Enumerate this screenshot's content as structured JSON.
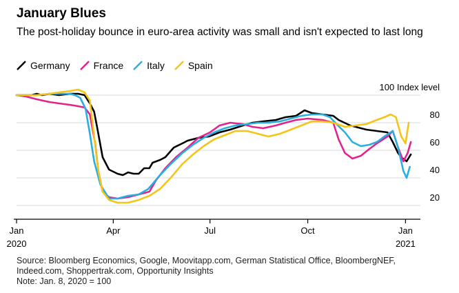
{
  "title": "January Blues",
  "subtitle": "The post-holiday bounce in euro-area activity was small and isn't expected to last long",
  "footer": {
    "source_line1": "Source: Bloomberg Economics, Google, Moovitapp.com, German Statistical Office, BloombergNEF,",
    "source_line2": "Indeed.com, Shoppertrak.com, Opportunity Insights",
    "note": "Note: Jan. 8, 2020 = 100"
  },
  "colors": {
    "Germany": "#000000",
    "France": "#e3238b",
    "Italy": "#29aee0",
    "Spain": "#f4c518",
    "grid": "#d9d9d9",
    "axis": "#000000"
  },
  "chart_data": {
    "type": "line",
    "title": "January Blues",
    "subtitle": "The post-holiday bounce in euro-area activity was small and isn't expected to last long",
    "ylabel": "Index level",
    "y_top_label": "100 Index level",
    "ylim": [
      10,
      105
    ],
    "yticks": [
      20,
      40,
      60,
      80,
      100
    ],
    "xlim": [
      "2020-01-01",
      "2021-01-15"
    ],
    "xticks": [
      {
        "date": "2020-01-01",
        "label": "Jan",
        "sublabel": "2020"
      },
      {
        "date": "2020-04-01",
        "label": "Apr",
        "sublabel": ""
      },
      {
        "date": "2020-07-01",
        "label": "Jul",
        "sublabel": ""
      },
      {
        "date": "2020-10-01",
        "label": "Oct",
        "sublabel": ""
      },
      {
        "date": "2021-01-01",
        "label": "Jan",
        "sublabel": "2021"
      }
    ],
    "grid": true,
    "legend_position": "top-left",
    "series": [
      {
        "name": "Germany",
        "points": [
          [
            "2020-01-01",
            100
          ],
          [
            "2020-01-15",
            100
          ],
          [
            "2020-01-20",
            101
          ],
          [
            "2020-01-25",
            100
          ],
          [
            "2020-02-01",
            101
          ],
          [
            "2020-02-10",
            100
          ],
          [
            "2020-02-20",
            101
          ],
          [
            "2020-02-28",
            101
          ],
          [
            "2020-03-05",
            100
          ],
          [
            "2020-03-10",
            94
          ],
          [
            "2020-03-14",
            88
          ],
          [
            "2020-03-17",
            76
          ],
          [
            "2020-03-22",
            55
          ],
          [
            "2020-03-28",
            46
          ],
          [
            "2020-04-05",
            43
          ],
          [
            "2020-04-10",
            42
          ],
          [
            "2020-04-15",
            44
          ],
          [
            "2020-04-20",
            43
          ],
          [
            "2020-04-25",
            43
          ],
          [
            "2020-04-30",
            47
          ],
          [
            "2020-05-05",
            47
          ],
          [
            "2020-05-08",
            51
          ],
          [
            "2020-05-15",
            53
          ],
          [
            "2020-05-20",
            55
          ],
          [
            "2020-05-28",
            62
          ],
          [
            "2020-06-05",
            65
          ],
          [
            "2020-06-10",
            67
          ],
          [
            "2020-06-20",
            69
          ],
          [
            "2020-06-30",
            70
          ],
          [
            "2020-07-10",
            73
          ],
          [
            "2020-07-20",
            75
          ],
          [
            "2020-08-01",
            78
          ],
          [
            "2020-08-10",
            80
          ],
          [
            "2020-08-20",
            81
          ],
          [
            "2020-09-01",
            82
          ],
          [
            "2020-09-10",
            84
          ],
          [
            "2020-09-20",
            85
          ],
          [
            "2020-09-28",
            89
          ],
          [
            "2020-10-05",
            87
          ],
          [
            "2020-10-15",
            86
          ],
          [
            "2020-10-25",
            85
          ],
          [
            "2020-10-30",
            82
          ],
          [
            "2020-11-10",
            78
          ],
          [
            "2020-11-25",
            75
          ],
          [
            "2020-12-05",
            74
          ],
          [
            "2020-12-15",
            73
          ],
          [
            "2020-12-20",
            66
          ],
          [
            "2020-12-25",
            58
          ],
          [
            "2020-12-28",
            55
          ],
          [
            "2021-01-02",
            52
          ],
          [
            "2021-01-06",
            57
          ]
        ]
      },
      {
        "name": "France",
        "points": [
          [
            "2020-01-01",
            100
          ],
          [
            "2020-01-10",
            99
          ],
          [
            "2020-01-20",
            97
          ],
          [
            "2020-02-01",
            95
          ],
          [
            "2020-02-10",
            94
          ],
          [
            "2020-02-20",
            93
          ],
          [
            "2020-02-28",
            92
          ],
          [
            "2020-03-05",
            91
          ],
          [
            "2020-03-10",
            86
          ],
          [
            "2020-03-15",
            65
          ],
          [
            "2020-03-18",
            45
          ],
          [
            "2020-03-22",
            30
          ],
          [
            "2020-03-28",
            26
          ],
          [
            "2020-04-05",
            25
          ],
          [
            "2020-04-15",
            26
          ],
          [
            "2020-04-25",
            28
          ],
          [
            "2020-05-05",
            30
          ],
          [
            "2020-05-11",
            38
          ],
          [
            "2020-05-20",
            47
          ],
          [
            "2020-05-30",
            55
          ],
          [
            "2020-06-10",
            62
          ],
          [
            "2020-06-20",
            69
          ],
          [
            "2020-07-01",
            73
          ],
          [
            "2020-07-10",
            78
          ],
          [
            "2020-07-20",
            80
          ],
          [
            "2020-08-01",
            79
          ],
          [
            "2020-08-10",
            77
          ],
          [
            "2020-08-20",
            76
          ],
          [
            "2020-09-01",
            78
          ],
          [
            "2020-09-10",
            80
          ],
          [
            "2020-09-20",
            82
          ],
          [
            "2020-10-01",
            83
          ],
          [
            "2020-10-15",
            82
          ],
          [
            "2020-10-25",
            80
          ],
          [
            "2020-10-30",
            68
          ],
          [
            "2020-11-05",
            58
          ],
          [
            "2020-11-12",
            54
          ],
          [
            "2020-11-20",
            56
          ],
          [
            "2020-11-28",
            61
          ],
          [
            "2020-12-05",
            65
          ],
          [
            "2020-12-15",
            70
          ],
          [
            "2020-12-20",
            74
          ],
          [
            "2020-12-25",
            62
          ],
          [
            "2020-12-30",
            52
          ],
          [
            "2021-01-03",
            58
          ],
          [
            "2021-01-06",
            66
          ]
        ]
      },
      {
        "name": "Italy",
        "points": [
          [
            "2020-01-01",
            100
          ],
          [
            "2020-01-10",
            100
          ],
          [
            "2020-01-20",
            100
          ],
          [
            "2020-02-01",
            101
          ],
          [
            "2020-02-10",
            101
          ],
          [
            "2020-02-20",
            101
          ],
          [
            "2020-02-25",
            100
          ],
          [
            "2020-03-01",
            98
          ],
          [
            "2020-03-06",
            90
          ],
          [
            "2020-03-10",
            72
          ],
          [
            "2020-03-14",
            52
          ],
          [
            "2020-03-20",
            35
          ],
          [
            "2020-03-28",
            25
          ],
          [
            "2020-04-05",
            25
          ],
          [
            "2020-04-15",
            27
          ],
          [
            "2020-04-25",
            28
          ],
          [
            "2020-05-04",
            32
          ],
          [
            "2020-05-15",
            42
          ],
          [
            "2020-05-25",
            50
          ],
          [
            "2020-06-05",
            58
          ],
          [
            "2020-06-15",
            64
          ],
          [
            "2020-06-25",
            69
          ],
          [
            "2020-07-05",
            73
          ],
          [
            "2020-07-15",
            76
          ],
          [
            "2020-07-25",
            78
          ],
          [
            "2020-08-05",
            79
          ],
          [
            "2020-08-15",
            80
          ],
          [
            "2020-08-25",
            80
          ],
          [
            "2020-09-05",
            81
          ],
          [
            "2020-09-15",
            83
          ],
          [
            "2020-09-25",
            85
          ],
          [
            "2020-10-05",
            86
          ],
          [
            "2020-10-15",
            86
          ],
          [
            "2020-10-22",
            84
          ],
          [
            "2020-10-28",
            79
          ],
          [
            "2020-11-05",
            73
          ],
          [
            "2020-11-12",
            66
          ],
          [
            "2020-11-20",
            63
          ],
          [
            "2020-11-28",
            64
          ],
          [
            "2020-12-05",
            66
          ],
          [
            "2020-12-12",
            70
          ],
          [
            "2020-12-20",
            74
          ],
          [
            "2020-12-25",
            62
          ],
          [
            "2020-12-30",
            45
          ],
          [
            "2021-01-02",
            40
          ],
          [
            "2021-01-05",
            48
          ]
        ]
      },
      {
        "name": "Spain",
        "points": [
          [
            "2020-01-01",
            100
          ],
          [
            "2020-01-10",
            100
          ],
          [
            "2020-01-20",
            100
          ],
          [
            "2020-02-01",
            101
          ],
          [
            "2020-02-10",
            102
          ],
          [
            "2020-02-20",
            103
          ],
          [
            "2020-02-28",
            104
          ],
          [
            "2020-03-05",
            102
          ],
          [
            "2020-03-10",
            96
          ],
          [
            "2020-03-14",
            70
          ],
          [
            "2020-03-18",
            45
          ],
          [
            "2020-03-22",
            30
          ],
          [
            "2020-03-28",
            24
          ],
          [
            "2020-04-05",
            22
          ],
          [
            "2020-04-15",
            22
          ],
          [
            "2020-04-25",
            24
          ],
          [
            "2020-05-05",
            27
          ],
          [
            "2020-05-15",
            32
          ],
          [
            "2020-05-25",
            40
          ],
          [
            "2020-06-05",
            50
          ],
          [
            "2020-06-15",
            57
          ],
          [
            "2020-06-25",
            63
          ],
          [
            "2020-07-05",
            68
          ],
          [
            "2020-07-15",
            71
          ],
          [
            "2020-07-25",
            74
          ],
          [
            "2020-08-05",
            74
          ],
          [
            "2020-08-15",
            72
          ],
          [
            "2020-08-25",
            70
          ],
          [
            "2020-09-05",
            72
          ],
          [
            "2020-09-15",
            75
          ],
          [
            "2020-09-25",
            78
          ],
          [
            "2020-10-05",
            81
          ],
          [
            "2020-10-15",
            81
          ],
          [
            "2020-10-25",
            80
          ],
          [
            "2020-11-05",
            77
          ],
          [
            "2020-11-15",
            78
          ],
          [
            "2020-11-25",
            79
          ],
          [
            "2020-12-05",
            82
          ],
          [
            "2020-12-12",
            84
          ],
          [
            "2020-12-18",
            86
          ],
          [
            "2020-12-23",
            84
          ],
          [
            "2020-12-28",
            70
          ],
          [
            "2021-01-01",
            65
          ],
          [
            "2021-01-04",
            80
          ]
        ]
      }
    ]
  }
}
